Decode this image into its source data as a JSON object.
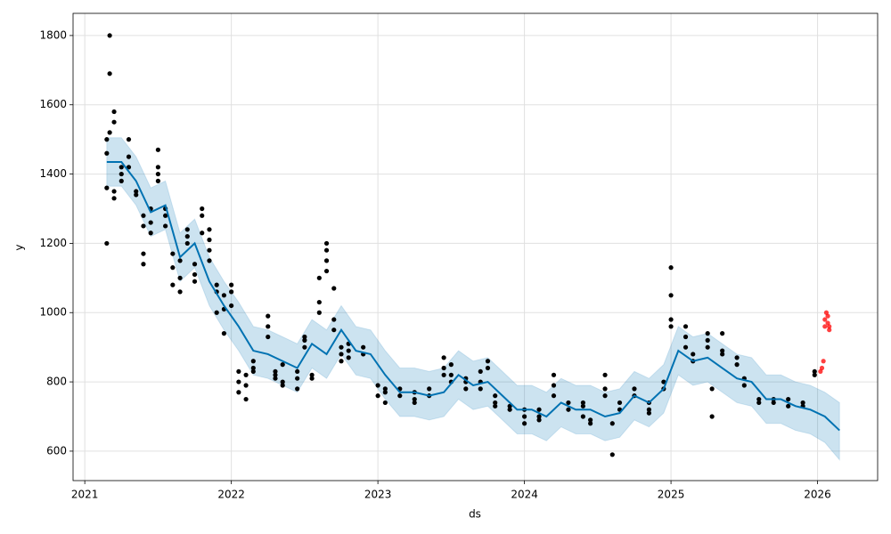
{
  "chart_data": {
    "type": "forecast",
    "xlabel": "ds",
    "ylabel": "y",
    "xlim": [
      2020.92,
      2026.41
    ],
    "ylim": [
      515,
      1864
    ],
    "xticks": [
      2021,
      2022,
      2023,
      2024,
      2025,
      2026
    ],
    "yticks": [
      600,
      800,
      1000,
      1200,
      1400,
      1600,
      1800
    ],
    "grid": true,
    "forecast": {
      "color": "#0072b2",
      "band_color": "#0072b2",
      "x": [
        2021.15,
        2021.25,
        2021.35,
        2021.45,
        2021.55,
        2021.65,
        2021.75,
        2021.85,
        2021.95,
        2022.05,
        2022.15,
        2022.25,
        2022.35,
        2022.45,
        2022.55,
        2022.65,
        2022.75,
        2022.85,
        2022.95,
        2023.05,
        2023.15,
        2023.25,
        2023.35,
        2023.45,
        2023.55,
        2023.65,
        2023.75,
        2023.85,
        2023.95,
        2024.05,
        2024.15,
        2024.25,
        2024.35,
        2024.45,
        2024.55,
        2024.65,
        2024.75,
        2024.85,
        2024.95,
        2025.05,
        2025.15,
        2025.25,
        2025.35,
        2025.45,
        2025.55,
        2025.65,
        2025.75,
        2025.85,
        2025.95,
        2026.05,
        2026.15
      ],
      "values": [
        1435,
        1435,
        1380,
        1290,
        1310,
        1160,
        1200,
        1090,
        1020,
        960,
        890,
        880,
        860,
        840,
        910,
        880,
        950,
        890,
        880,
        820,
        770,
        770,
        760,
        770,
        820,
        790,
        800,
        760,
        720,
        720,
        700,
        740,
        720,
        720,
        700,
        710,
        760,
        740,
        780,
        890,
        860,
        870,
        840,
        810,
        800,
        750,
        750,
        730,
        720,
        700,
        660
      ],
      "upper": [
        1505,
        1505,
        1450,
        1360,
        1380,
        1230,
        1270,
        1160,
        1090,
        1030,
        960,
        950,
        930,
        910,
        980,
        950,
        1020,
        960,
        950,
        890,
        840,
        840,
        830,
        840,
        890,
        860,
        870,
        830,
        790,
        790,
        770,
        810,
        790,
        790,
        770,
        780,
        830,
        810,
        850,
        960,
        930,
        940,
        910,
        880,
        870,
        820,
        820,
        800,
        790,
        770,
        740
      ],
      "lower": [
        1365,
        1365,
        1310,
        1220,
        1240,
        1090,
        1130,
        1020,
        950,
        890,
        820,
        810,
        790,
        770,
        840,
        810,
        880,
        820,
        810,
        750,
        700,
        700,
        690,
        700,
        750,
        720,
        730,
        690,
        650,
        650,
        630,
        670,
        650,
        650,
        630,
        640,
        690,
        670,
        710,
        820,
        790,
        800,
        770,
        740,
        730,
        680,
        680,
        660,
        650,
        625,
        575
      ]
    },
    "points": [
      {
        "color": "#000000",
        "x": [
          2021.15,
          2021.15,
          2021.15,
          2021.15,
          2021.17,
          2021.17,
          2021.17,
          2021.2,
          2021.2,
          2021.2,
          2021.2,
          2021.25,
          2021.25,
          2021.25,
          2021.3,
          2021.3,
          2021.3,
          2021.35,
          2021.35,
          2021.4,
          2021.4,
          2021.4,
          2021.4,
          2021.45,
          2021.45,
          2021.45,
          2021.5,
          2021.5,
          2021.5,
          2021.5,
          2021.55,
          2021.55,
          2021.55,
          2021.6,
          2021.6,
          2021.6,
          2021.65,
          2021.65,
          2021.65,
          2021.7,
          2021.7,
          2021.7,
          2021.75,
          2021.75,
          2021.75,
          2021.8,
          2021.8,
          2021.8,
          2021.85,
          2021.85,
          2021.85,
          2021.85,
          2021.9,
          2021.9,
          2021.9,
          2021.95,
          2021.95,
          2021.95,
          2022.0,
          2022.0,
          2022.0,
          2022.05,
          2022.05,
          2022.05,
          2022.1,
          2022.1,
          2022.1,
          2022.15,
          2022.15,
          2022.15,
          2022.25,
          2022.25,
          2022.25,
          2022.3,
          2022.3,
          2022.3,
          2022.35,
          2022.35,
          2022.35,
          2022.45,
          2022.45,
          2022.45,
          2022.5,
          2022.5,
          2022.5,
          2022.55,
          2022.55,
          2022.6,
          2022.6,
          2022.6,
          2022.65,
          2022.65,
          2022.65,
          2022.65,
          2022.7,
          2022.7,
          2022.7,
          2022.75,
          2022.75,
          2022.75,
          2022.8,
          2022.8,
          2022.8,
          2022.9,
          2022.9,
          2023.0,
          2023.0,
          2023.05,
          2023.05,
          2023.05,
          2023.15,
          2023.15,
          2023.25,
          2023.25,
          2023.25,
          2023.35,
          2023.35,
          2023.45,
          2023.45,
          2023.45,
          2023.5,
          2023.5,
          2023.5,
          2023.6,
          2023.6,
          2023.6,
          2023.7,
          2023.7,
          2023.7,
          2023.75,
          2023.75,
          2023.8,
          2023.8,
          2023.8,
          2023.9,
          2023.9,
          2024.0,
          2024.0,
          2024.0,
          2024.1,
          2024.1,
          2024.1,
          2024.2,
          2024.2,
          2024.2,
          2024.3,
          2024.3,
          2024.4,
          2024.4,
          2024.4,
          2024.45,
          2024.45,
          2024.55,
          2024.55,
          2024.55,
          2024.6,
          2024.6,
          2024.65,
          2024.65,
          2024.75,
          2024.75,
          2024.85,
          2024.85,
          2024.85,
          2024.95,
          2024.95,
          2025.0,
          2025.0,
          2025.0,
          2025.0,
          2025.1,
          2025.1,
          2025.1,
          2025.15,
          2025.15,
          2025.25,
          2025.25,
          2025.25,
          2025.28,
          2025.28,
          2025.35,
          2025.35,
          2025.35,
          2025.45,
          2025.45,
          2025.5,
          2025.5,
          2025.6,
          2025.6,
          2025.7,
          2025.7,
          2025.8,
          2025.8,
          2025.9,
          2025.9,
          2025.98,
          2025.98
        ],
        "values": [
          1200,
          1360,
          1460,
          1500,
          1800,
          1690,
          1520,
          1550,
          1580,
          1350,
          1330,
          1400,
          1420,
          1380,
          1500,
          1450,
          1420,
          1350,
          1340,
          1250,
          1140,
          1170,
          1280,
          1230,
          1300,
          1260,
          1470,
          1400,
          1380,
          1420,
          1300,
          1280,
          1250,
          1170,
          1080,
          1130,
          1060,
          1100,
          1150,
          1200,
          1240,
          1220,
          1140,
          1110,
          1090,
          1300,
          1280,
          1230,
          1180,
          1150,
          1240,
          1210,
          1080,
          1060,
          1000,
          1050,
          940,
          1010,
          1060,
          1080,
          1020,
          830,
          770,
          800,
          820,
          750,
          790,
          860,
          840,
          830,
          990,
          960,
          930,
          830,
          820,
          810,
          850,
          790,
          800,
          780,
          830,
          810,
          920,
          900,
          930,
          820,
          810,
          1100,
          1030,
          1000,
          1200,
          1180,
          1120,
          1150,
          1070,
          980,
          950,
          900,
          880,
          860,
          910,
          890,
          870,
          900,
          880,
          790,
          760,
          780,
          770,
          740,
          760,
          780,
          750,
          770,
          740,
          780,
          760,
          840,
          870,
          820,
          850,
          820,
          800,
          800,
          810,
          780,
          780,
          830,
          800,
          860,
          840,
          760,
          740,
          730,
          730,
          720,
          700,
          680,
          720,
          720,
          700,
          690,
          820,
          790,
          760,
          720,
          740,
          730,
          740,
          700,
          690,
          680,
          820,
          780,
          760,
          590,
          680,
          720,
          740,
          780,
          760,
          740,
          720,
          710,
          800,
          780,
          1130,
          1050,
          980,
          960,
          960,
          930,
          900,
          880,
          860,
          900,
          920,
          940,
          780,
          700,
          880,
          890,
          940,
          870,
          850,
          810,
          790,
          740,
          750,
          750,
          740,
          750,
          730,
          730,
          740,
          830,
          820
        ]
      },
      {
        "color": "#ff0000",
        "x": [
          2026.02,
          2026.03,
          2026.04,
          2026.05,
          2026.05,
          2026.06,
          2026.07,
          2026.07,
          2026.08,
          2026.08
        ],
        "values": [
          830,
          840,
          860,
          960,
          980,
          1000,
          990,
          970,
          950,
          960
        ]
      }
    ]
  }
}
